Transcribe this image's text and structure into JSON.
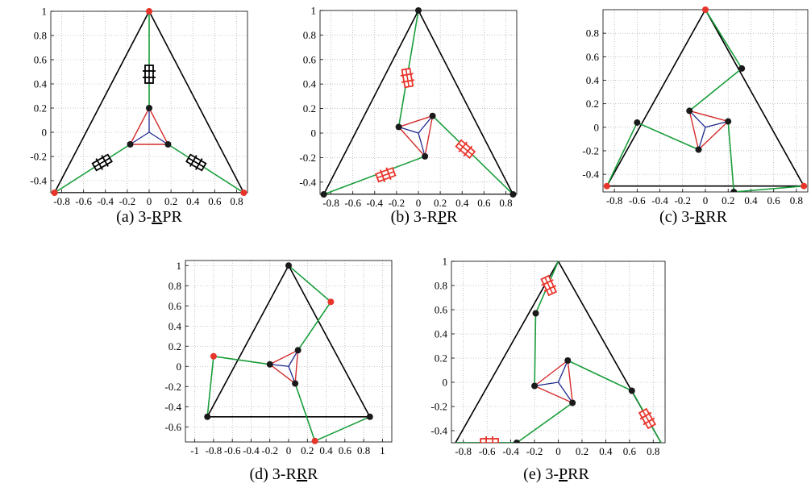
{
  "colors": {
    "triangle": "#000000",
    "leg": "#1a9e3c",
    "platform_outer": "#d42a2a",
    "platform_inner": "#1f2a8f",
    "joint_base": "#e8352b",
    "joint": "#1a1a1a",
    "prismatic_black": "#000000",
    "prismatic_red": "#e8352b",
    "grid": "#9a9a9a"
  },
  "panels": [
    {
      "id": "a",
      "caption_prefix": "(a) 3-",
      "caption_segments": [
        {
          "t": "R",
          "u": true
        },
        {
          "t": "P",
          "u": false
        },
        {
          "t": "R",
          "u": false
        }
      ],
      "xlim": [
        -0.9,
        0.9
      ],
      "ylim": [
        -0.5,
        1.0
      ],
      "xticks": [
        "-0.8",
        "-0.6",
        "-0.4",
        "-0.2",
        "0",
        "0.2",
        "0.4",
        "0.6",
        "0.8"
      ],
      "xtick_values": [
        -0.8,
        -0.6,
        -0.4,
        -0.2,
        0,
        0.2,
        0.4,
        0.6,
        0.8
      ],
      "yticks": [
        "-0.4",
        "-0.2",
        "0",
        "0.2",
        "0.4",
        "0.6",
        "0.8",
        "1"
      ],
      "ytick_values": [
        -0.4,
        -0.2,
        0,
        0.2,
        0.4,
        0.6,
        0.8,
        1
      ],
      "base_triangle": [
        [
          0,
          1
        ],
        [
          -0.866,
          -0.5
        ],
        [
          0.866,
          -0.5
        ]
      ],
      "platform": [
        [
          0,
          0.2
        ],
        [
          -0.173,
          -0.1
        ],
        [
          0.173,
          -0.1
        ]
      ],
      "center": [
        0,
        0
      ],
      "legs": [
        [
          [
            0,
            1
          ],
          [
            0,
            0.2
          ]
        ],
        [
          [
            -0.866,
            -0.5
          ],
          [
            -0.173,
            -0.1
          ]
        ],
        [
          [
            0.866,
            -0.5
          ],
          [
            0.173,
            -0.1
          ]
        ]
      ],
      "base_joints": [
        [
          0,
          1
        ],
        [
          -0.866,
          -0.5
        ],
        [
          0.866,
          -0.5
        ]
      ],
      "base_joint_color": "joint_base",
      "joints": [
        [
          0,
          0.2
        ],
        [
          -0.173,
          -0.1
        ],
        [
          0.173,
          -0.1
        ]
      ],
      "prismatics": [
        {
          "x": 0,
          "y": 0.48,
          "angle": 90,
          "color": "prismatic_black"
        },
        {
          "x": -0.43,
          "y": -0.25,
          "angle": 30,
          "color": "prismatic_black"
        },
        {
          "x": 0.43,
          "y": -0.25,
          "angle": 150,
          "color": "prismatic_black"
        }
      ]
    },
    {
      "id": "b",
      "caption_prefix": "(b) 3-R",
      "caption_segments": [
        {
          "t": "P",
          "u": true
        },
        {
          "t": "R",
          "u": false
        }
      ],
      "xlim": [
        -0.9,
        0.9
      ],
      "ylim": [
        -0.5,
        1.0
      ],
      "xticks": [
        "-0.8",
        "-0.6",
        "-0.4",
        "-0.2",
        "0",
        "0.2",
        "0.4",
        "0.6",
        "0.8"
      ],
      "xtick_values": [
        -0.8,
        -0.6,
        -0.4,
        -0.2,
        0,
        0.2,
        0.4,
        0.6,
        0.8
      ],
      "yticks": [
        "-0.4",
        "-0.2",
        "0",
        "0.2",
        "0.4",
        "0.6",
        "0.8",
        "1"
      ],
      "ytick_values": [
        -0.4,
        -0.2,
        0,
        0.2,
        0.4,
        0.6,
        0.8,
        1
      ],
      "base_triangle": [
        [
          0,
          1
        ],
        [
          -0.866,
          -0.5
        ],
        [
          0.866,
          -0.5
        ]
      ],
      "platform": [
        [
          -0.18,
          0.05
        ],
        [
          0.13,
          0.14
        ],
        [
          0.06,
          -0.19
        ]
      ],
      "center": [
        0.0,
        0.0
      ],
      "legs": [
        [
          [
            0,
            1
          ],
          [
            -0.18,
            0.05
          ]
        ],
        [
          [
            -0.866,
            -0.5
          ],
          [
            0.06,
            -0.19
          ]
        ],
        [
          [
            0.866,
            -0.5
          ],
          [
            0.13,
            0.14
          ]
        ]
      ],
      "base_joints": [
        [
          0,
          1
        ],
        [
          -0.866,
          -0.5
        ],
        [
          0.866,
          -0.5
        ]
      ],
      "base_joint_color": "joint",
      "joints": [
        [
          -0.18,
          0.05
        ],
        [
          0.13,
          0.14
        ],
        [
          0.06,
          -0.19
        ]
      ],
      "prismatics": [
        {
          "x": -0.1,
          "y": 0.45,
          "angle": 100,
          "color": "prismatic_red"
        },
        {
          "x": 0.43,
          "y": -0.13,
          "angle": 140,
          "color": "prismatic_red"
        },
        {
          "x": -0.3,
          "y": -0.34,
          "angle": 20,
          "color": "prismatic_red"
        }
      ]
    },
    {
      "id": "c",
      "caption_prefix": "(c) 3-",
      "caption_segments": [
        {
          "t": "R",
          "u": true
        },
        {
          "t": "R",
          "u": false
        },
        {
          "t": "R",
          "u": false
        }
      ],
      "xlim": [
        -0.9,
        0.9
      ],
      "ylim": [
        -0.55,
        1.0
      ],
      "xticks": [
        "-0.8",
        "-0.6",
        "-0.4",
        "-0.2",
        "0",
        "0.2",
        "0.4",
        "0.6",
        "0.8"
      ],
      "xtick_values": [
        -0.8,
        -0.6,
        -0.4,
        -0.2,
        0,
        0.2,
        0.4,
        0.6,
        0.8
      ],
      "yticks": [
        "-0.4",
        "-0.2",
        "0",
        "0.2",
        "0.4",
        "0.6",
        "0.8"
      ],
      "ytick_values": [
        -0.4,
        -0.2,
        0,
        0.2,
        0.4,
        0.6,
        0.8
      ],
      "base_triangle": [
        [
          0,
          1
        ],
        [
          -0.866,
          -0.5
        ],
        [
          0.866,
          -0.5
        ]
      ],
      "platform": [
        [
          -0.14,
          0.14
        ],
        [
          0.2,
          0.05
        ],
        [
          -0.06,
          -0.19
        ]
      ],
      "center": [
        0.0,
        0.0
      ],
      "legs": [
        [
          [
            0,
            1
          ],
          [
            0.32,
            0.5
          ],
          [
            -0.14,
            0.14
          ]
        ],
        [
          [
            -0.866,
            -0.5
          ],
          [
            -0.6,
            0.04
          ],
          [
            -0.06,
            -0.19
          ]
        ],
        [
          [
            0.866,
            -0.5
          ],
          [
            0.25,
            -0.55
          ],
          [
            0.2,
            0.05
          ]
        ]
      ],
      "base_joints": [
        [
          0,
          1
        ],
        [
          -0.866,
          -0.5
        ],
        [
          0.866,
          -0.5
        ]
      ],
      "base_joint_color": "joint_base",
      "joints": [
        [
          0.32,
          0.5
        ],
        [
          -0.6,
          0.04
        ],
        [
          0.25,
          -0.55
        ],
        [
          -0.14,
          0.14
        ],
        [
          0.2,
          0.05
        ],
        [
          -0.06,
          -0.19
        ]
      ],
      "prismatics": []
    },
    {
      "id": "d",
      "caption_prefix": "(d) 3-R",
      "caption_segments": [
        {
          "t": "R",
          "u": true
        },
        {
          "t": "R",
          "u": false
        }
      ],
      "xlim": [
        -1.1,
        1.1
      ],
      "ylim": [
        -0.75,
        1.05
      ],
      "xticks": [
        "-1",
        "-0.8",
        "-0.6",
        "-0.4",
        "-0.2",
        "0",
        "0.2",
        "0.4",
        "0.6",
        "0.8",
        "1"
      ],
      "xtick_values": [
        -1,
        -0.8,
        -0.6,
        -0.4,
        -0.2,
        0,
        0.2,
        0.4,
        0.6,
        0.8,
        1
      ],
      "yticks": [
        "-0.6",
        "-0.4",
        "-0.2",
        "0",
        "0.2",
        "0.4",
        "0.6",
        "0.8",
        "1"
      ],
      "ytick_values": [
        -0.6,
        -0.4,
        -0.2,
        0,
        0.2,
        0.4,
        0.6,
        0.8,
        1
      ],
      "base_triangle": [
        [
          0,
          1
        ],
        [
          -0.866,
          -0.5
        ],
        [
          0.866,
          -0.5
        ]
      ],
      "platform": [
        [
          -0.2,
          0.02
        ],
        [
          0.1,
          0.16
        ],
        [
          0.07,
          -0.17
        ]
      ],
      "center": [
        0.0,
        0.0
      ],
      "legs": [
        [
          [
            0,
            1
          ],
          [
            0.45,
            0.64
          ],
          [
            0.1,
            0.16
          ]
        ],
        [
          [
            -0.866,
            -0.5
          ],
          [
            -0.8,
            0.1
          ],
          [
            -0.2,
            0.02
          ]
        ],
        [
          [
            0.866,
            -0.5
          ],
          [
            0.28,
            -0.74
          ],
          [
            0.07,
            -0.17
          ]
        ]
      ],
      "base_joints": [
        [
          0.45,
          0.64
        ],
        [
          -0.8,
          0.1
        ],
        [
          0.28,
          -0.74
        ]
      ],
      "base_joint_color": "joint_base",
      "joints": [
        [
          0,
          1
        ],
        [
          -0.866,
          -0.5
        ],
        [
          0.866,
          -0.5
        ],
        [
          -0.2,
          0.02
        ],
        [
          0.1,
          0.16
        ],
        [
          0.07,
          -0.17
        ]
      ],
      "prismatics": []
    },
    {
      "id": "e",
      "caption_prefix": "(e) 3-",
      "caption_segments": [
        {
          "t": "P",
          "u": true
        },
        {
          "t": "R",
          "u": false
        },
        {
          "t": "R",
          "u": false
        }
      ],
      "xlim": [
        -0.9,
        0.9
      ],
      "ylim": [
        -0.5,
        1.0
      ],
      "xticks": [
        "-0.8",
        "-0.6",
        "-0.4",
        "-0.2",
        "0",
        "0.2",
        "0.4",
        "0.6",
        "0.8"
      ],
      "xtick_values": [
        -0.8,
        -0.6,
        -0.4,
        -0.2,
        0,
        0.2,
        0.4,
        0.6,
        0.8
      ],
      "yticks": [
        "-0.4",
        "-0.2",
        "0",
        "0.2",
        "0.4",
        "0.6",
        "0.8",
        "1"
      ],
      "ytick_values": [
        -0.4,
        -0.2,
        0,
        0.2,
        0.4,
        0.6,
        0.8,
        1
      ],
      "base_triangle": [
        [
          0,
          1
        ],
        [
          -0.866,
          -0.5
        ],
        [
          0.866,
          -0.5
        ]
      ],
      "platform": [
        [
          -0.2,
          -0.03
        ],
        [
          0.08,
          0.18
        ],
        [
          0.12,
          -0.17
        ]
      ],
      "center": [
        0.0,
        0.0
      ],
      "legs": [
        [
          [
            0,
            1
          ],
          [
            -0.19,
            0.57
          ],
          [
            -0.2,
            -0.03
          ]
        ],
        [
          [
            -0.866,
            -0.5
          ],
          [
            -0.35,
            -0.5
          ],
          [
            0.12,
            -0.17
          ]
        ],
        [
          [
            0.866,
            -0.5
          ],
          [
            0.62,
            -0.07
          ],
          [
            0.08,
            0.18
          ]
        ]
      ],
      "base_joints": [],
      "base_joint_color": "joint",
      "joints": [
        [
          -0.19,
          0.57
        ],
        [
          -0.35,
          -0.5
        ],
        [
          0.62,
          -0.07
        ],
        [
          -0.2,
          -0.03
        ],
        [
          0.08,
          0.18
        ],
        [
          0.12,
          -0.17
        ]
      ],
      "prismatics": [
        {
          "x": -0.08,
          "y": 0.8,
          "angle": 115,
          "color": "prismatic_red"
        },
        {
          "x": -0.58,
          "y": -0.5,
          "angle": 0,
          "color": "prismatic_red"
        },
        {
          "x": 0.75,
          "y": -0.3,
          "angle": 120,
          "color": "prismatic_red"
        }
      ]
    }
  ]
}
